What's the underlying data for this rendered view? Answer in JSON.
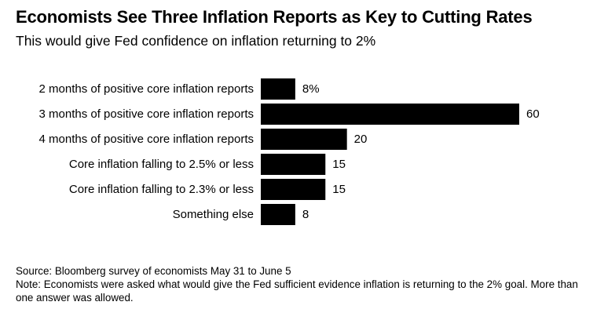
{
  "header": {
    "title": "Economists See Three Inflation Reports as Key to Cutting Rates",
    "subtitle": "This would give Fed confidence on inflation returning to 2%"
  },
  "chart_data": {
    "type": "bar",
    "orientation": "horizontal",
    "categories": [
      "2 months of positive core inflation reports",
      "3 months of positive core inflation reports",
      "4 months of positive core inflation reports",
      "Core inflation falling to 2.5% or less",
      "Core inflation falling to 2.3% or less",
      "Something else"
    ],
    "values": [
      8,
      60,
      20,
      15,
      15,
      8
    ],
    "value_labels": [
      "8%",
      "60",
      "20",
      "15",
      "15",
      "8"
    ],
    "bar_color": "#000000",
    "xlim": [
      0,
      60
    ],
    "grid": false,
    "legend": "none"
  },
  "footer": {
    "source": "Source: Bloomberg survey of economists May 31 to June 5",
    "note": "Note: Economists were asked what would give the Fed sufficient evidence inflation is returning to the 2% goal. More than one answer was allowed."
  }
}
